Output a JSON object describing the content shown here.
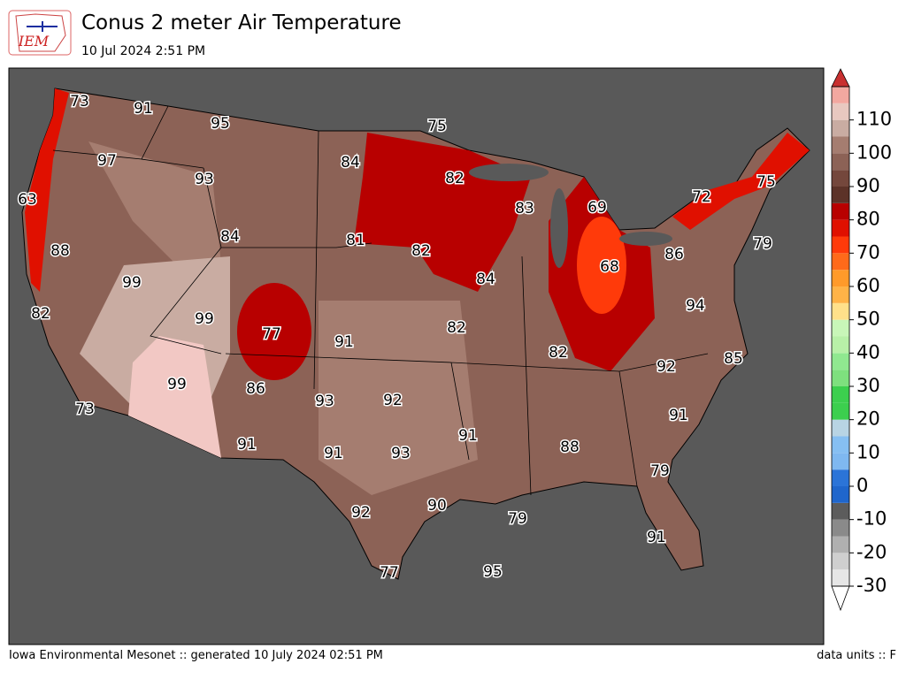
{
  "header": {
    "logo": "IEM",
    "title": "Conus 2 meter Air Temperature",
    "subtitle": "10 Jul 2024 2:51 PM"
  },
  "footer": {
    "source": "Iowa Environmental Mesonet :: generated 10 July 2024 02:51 PM",
    "units": "data units :: F"
  },
  "colorbar": {
    "levels": [
      -30,
      -25,
      -20,
      -15,
      -10,
      -5,
      0,
      5,
      10,
      15,
      20,
      25,
      30,
      35,
      40,
      45,
      50,
      55,
      60,
      65,
      70,
      75,
      80,
      85,
      90,
      95,
      100,
      105,
      110,
      115,
      120
    ],
    "colors": [
      "#e6e6e6",
      "#cfcfcf",
      "#b0b0b0",
      "#8a8a8a",
      "#5c5c5c",
      "#1f66cc",
      "#2b74d8",
      "#7fb8f0",
      "#86bff2",
      "#b8d4e4",
      "#3ccf4e",
      "#3ccf4e",
      "#7ee07e",
      "#90e890",
      "#b8f0a8",
      "#c8f6b8",
      "#ffe08a",
      "#ffb347",
      "#ff9a2a",
      "#ff6a1a",
      "#ff3a0a",
      "#e01000",
      "#b80000",
      "#5c3228",
      "#74473c",
      "#8c6256",
      "#a57d70",
      "#c9aca2",
      "#e8c8c0",
      "#f2a8a0"
    ],
    "ticks": [
      -30,
      -20,
      -10,
      0,
      10,
      20,
      30,
      40,
      50,
      60,
      70,
      80,
      90,
      100,
      110
    ]
  },
  "stations": [
    73,
    91,
    95,
    75,
    97,
    93,
    84,
    82,
    83,
    69,
    72,
    75,
    63,
    84,
    81,
    82,
    79,
    88,
    86,
    68,
    99,
    84,
    94,
    82,
    99,
    77,
    91,
    82,
    82,
    85,
    92,
    99,
    86,
    93,
    92,
    91,
    73,
    91,
    88,
    91,
    91,
    93,
    79,
    92,
    90,
    79,
    91,
    77,
    95
  ]
}
